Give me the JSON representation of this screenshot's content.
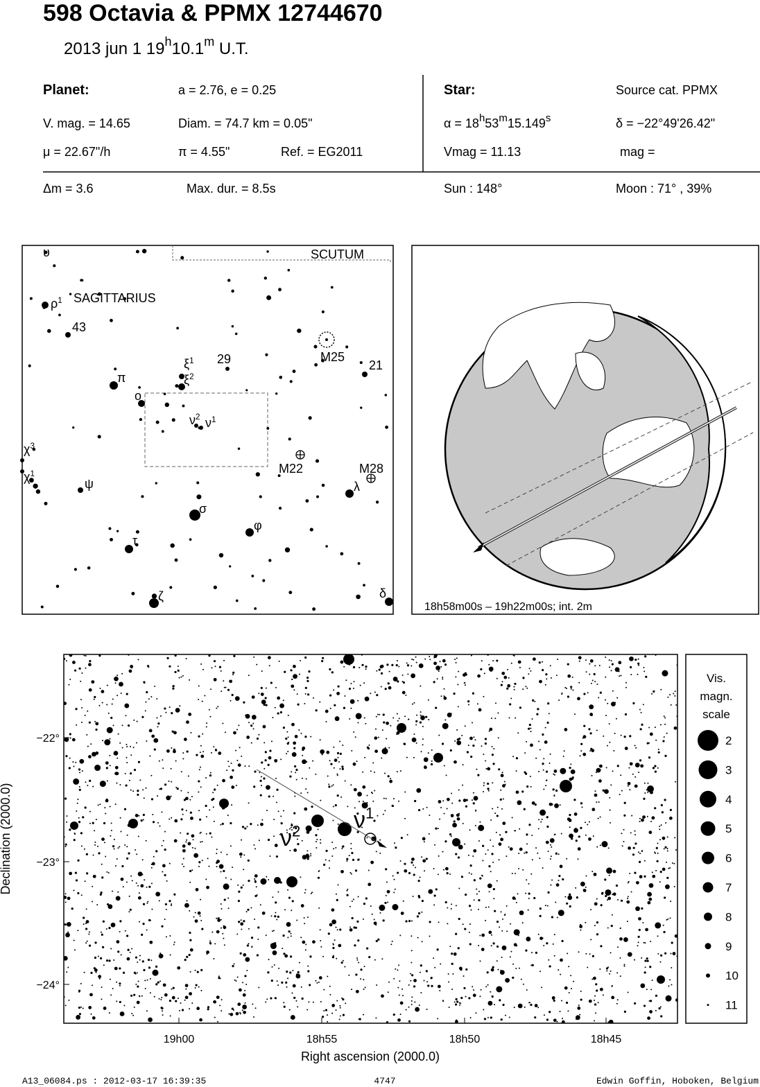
{
  "header": {
    "title": "598 Octavia  &  PPMX 12744670",
    "date": "2013 jun  1  19",
    "date_h": "h",
    "date_min": "10.1",
    "date_m": "m",
    "date_ut": " U.T."
  },
  "info": {
    "planet_label": "Planet:",
    "orbit": "a = 2.76, e = 0.25",
    "vmag": "V. mag. = 14.65",
    "diam": "Diam. = 74.7 km = 0.05\"",
    "mu": "μ =  22.67\"/h",
    "pi": "π =  4.55\"",
    "ref": "Ref. = EG2011",
    "star_label": "Star:",
    "source": "Source cat.  PPMX",
    "alpha": [
      "α = 18",
      "h",
      "53",
      "m",
      "15.149",
      "s"
    ],
    "delta": "δ = −22°49'26.42\"",
    "vmag_star": "Vmag = 11.13",
    "mag": "mag =",
    "dm": "Δm = 3.6",
    "maxdur": "Max. dur. = 8.5s",
    "sun": "Sun : 148°",
    "moon": "Moon :  71° , 39%"
  },
  "finder": {
    "labels": [
      {
        "text": "υ"
      },
      {
        "text": "ρ",
        "sup": "1"
      },
      {
        "text": "SAGITTARIUS"
      },
      {
        "text": "43"
      },
      {
        "text": "29"
      },
      {
        "text": "ξ",
        "sup": "1"
      },
      {
        "text": "ξ",
        "sup": "2"
      },
      {
        "text": "M25"
      },
      {
        "text": "21"
      },
      {
        "text": "π"
      },
      {
        "text": "ο"
      },
      {
        "text": "ν",
        "sup": "2"
      },
      {
        "text": "ν",
        "sup": "1"
      },
      {
        "text": "χ",
        "sup": "3"
      },
      {
        "text": "χ",
        "sup": "1"
      },
      {
        "text": "M22"
      },
      {
        "text": "M28"
      },
      {
        "text": "ψ"
      },
      {
        "text": "λ"
      },
      {
        "text": "σ"
      },
      {
        "text": "φ"
      },
      {
        "text": "τ"
      },
      {
        "text": "δ"
      },
      {
        "text": "ζ"
      },
      {
        "text": "SCUTUM"
      }
    ]
  },
  "globe": {
    "caption": "18h58m00s – 19h22m00s; int.  2m"
  },
  "chart": {
    "y_label": "Declination (2000.0)",
    "x_label": "Right ascension (2000.0)",
    "yticks": [
      "−22°",
      "−23°",
      "−24°"
    ],
    "xticks": [
      "19h00",
      "18h55",
      "18h50",
      "18h45"
    ],
    "star_labels": [
      {
        "text": "ν",
        "sup": "2"
      },
      {
        "text": "ν",
        "sup": "1"
      }
    ],
    "scale_title": [
      "Vis.",
      "magn.",
      "scale"
    ],
    "scale": [
      2,
      3,
      4,
      5,
      6,
      7,
      8,
      9,
      10,
      11
    ]
  },
  "footer": {
    "file": "A13_06084.ps : 2012-03-17 16:39:35",
    "number": "4747",
    "author": "Edwin Goffin, Hoboken, Belgium"
  }
}
